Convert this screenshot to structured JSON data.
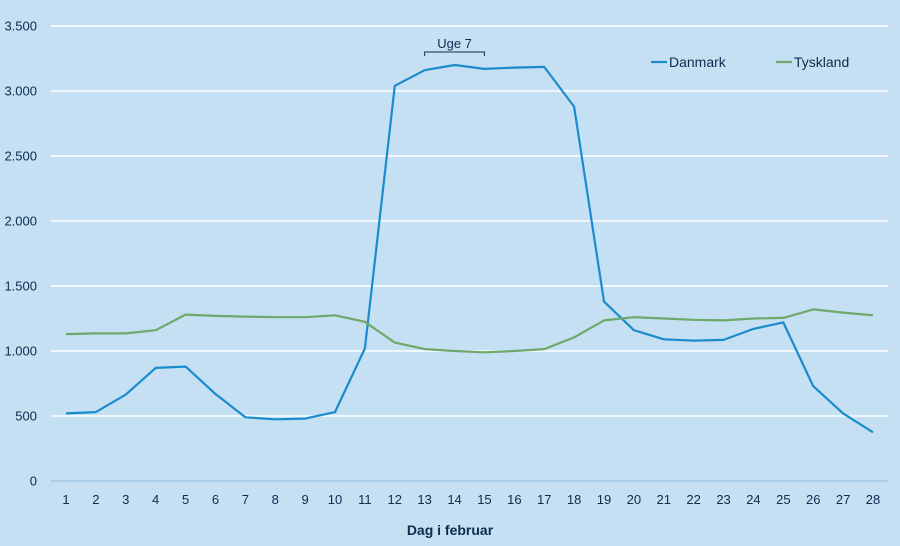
{
  "chart_data": {
    "type": "line",
    "xlabel": "Dag i februar",
    "ylabel": "",
    "x": [
      1,
      2,
      3,
      4,
      5,
      6,
      7,
      8,
      9,
      10,
      11,
      12,
      13,
      14,
      15,
      16,
      17,
      18,
      19,
      20,
      21,
      22,
      23,
      24,
      25,
      26,
      27,
      28
    ],
    "x_tick_labels": [
      "1",
      "2",
      "3",
      "4",
      "5",
      "6",
      "7",
      "8",
      "9",
      "10",
      "11",
      "12",
      "13",
      "14",
      "15",
      "16",
      "17",
      "18",
      "19",
      "20",
      "21",
      "22",
      "23",
      "24",
      "25",
      "26",
      "27",
      "28"
    ],
    "ylim": [
      0,
      3500
    ],
    "y_ticks": [
      0,
      500,
      1000,
      1500,
      2000,
      2500,
      3000,
      3500
    ],
    "y_tick_labels": [
      "0",
      "500",
      "1.000",
      "1.500",
      "2.000",
      "2.500",
      "3.000",
      "3.500"
    ],
    "grid": true,
    "legend_position": "top-right",
    "series": [
      {
        "name": "Danmark",
        "color": "#1a8ccc",
        "values": [
          520,
          530,
          665,
          870,
          880,
          670,
          490,
          475,
          480,
          530,
          1020,
          3040,
          3160,
          3200,
          3170,
          3180,
          3185,
          2880,
          1380,
          1160,
          1090,
          1080,
          1085,
          1170,
          1220,
          730,
          520,
          375
        ]
      },
      {
        "name": "Tyskland",
        "color": "#6ea86a",
        "values": [
          1130,
          1135,
          1135,
          1160,
          1280,
          1270,
          1265,
          1260,
          1260,
          1275,
          1225,
          1065,
          1015,
          1000,
          990,
          1000,
          1015,
          1105,
          1235,
          1260,
          1250,
          1240,
          1235,
          1250,
          1255,
          1320,
          1295,
          1275
        ]
      }
    ],
    "annotations": [
      {
        "text": "Uge 7",
        "x_start": 13,
        "x_end": 15,
        "y": 3300
      }
    ]
  }
}
